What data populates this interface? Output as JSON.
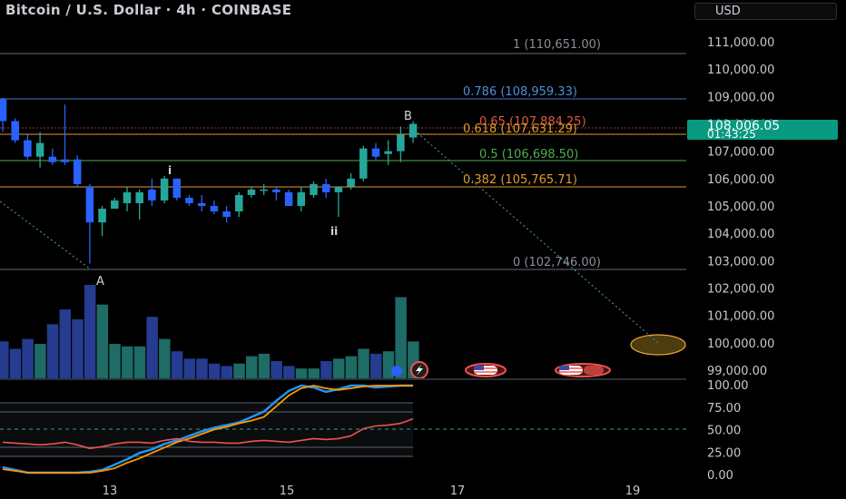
{
  "header": {
    "title": "Bitcoin / U.S. Dollar · 4h · COINBASE",
    "currency": "USD"
  },
  "price_axis": {
    "ticks": [
      "111,000.00",
      "110,000.00",
      "109,000.00",
      "108,000.00",
      "107,000.00",
      "106,000.00",
      "105,000.00",
      "104,000.00",
      "103,000.00",
      "102,000.00",
      "101,000.00",
      "100,000.00",
      "99,000.00"
    ],
    "current_price": "108,006.05",
    "countdown": "01:43:25"
  },
  "fib_levels": [
    {
      "label": "1 (110,651.00)",
      "color": "#8a8e98"
    },
    {
      "label": "0.786 (108,959.33)",
      "color": "#4f8fd6"
    },
    {
      "label": "0.65 (107,884.25)",
      "color": "#e0593e"
    },
    {
      "label": "0.618 (107,631.29)",
      "color": "#e39a2a"
    },
    {
      "label": "0.5 (106,698.50)",
      "color": "#4caf50"
    },
    {
      "label": "0.382 (105,765.71)",
      "color": "#e39a2a"
    },
    {
      "label": "0 (102,746.00)",
      "color": "#8a8e98"
    }
  ],
  "markers": {
    "a": "A",
    "b": "B",
    "i": "i",
    "ii": "ii"
  },
  "time_axis": [
    "13",
    "15",
    "17",
    "19"
  ],
  "oscillator_axis": [
    "100.00",
    "75.00",
    "50.00",
    "25.00",
    "0.00"
  ],
  "colors": {
    "up": "#26a69a",
    "down": "#2962ff",
    "rsi": "#ef5350",
    "stoch_k": "#2196f3",
    "stoch_d": "#ff9800"
  },
  "chart_data": {
    "type": "candlestick",
    "symbol": "BTCUSD",
    "interval": "4h",
    "candles": [
      {
        "o": 108900,
        "h": 108950,
        "l": 107700,
        "c": 108100
      },
      {
        "o": 108100,
        "h": 108200,
        "l": 107300,
        "c": 107400
      },
      {
        "o": 107400,
        "h": 107600,
        "l": 106700,
        "c": 106800
      },
      {
        "o": 106800,
        "h": 107700,
        "l": 106400,
        "c": 107300
      },
      {
        "o": 106800,
        "h": 107100,
        "l": 106500,
        "c": 106600
      },
      {
        "o": 106700,
        "h": 108700,
        "l": 106500,
        "c": 106600
      },
      {
        "o": 106700,
        "h": 106850,
        "l": 105700,
        "c": 105800
      },
      {
        "o": 105700,
        "h": 105800,
        "l": 102900,
        "c": 104400
      },
      {
        "o": 104400,
        "h": 105000,
        "l": 103900,
        "c": 104900
      },
      {
        "o": 104900,
        "h": 105300,
        "l": 104900,
        "c": 105200
      },
      {
        "o": 105100,
        "h": 105700,
        "l": 104800,
        "c": 105500
      },
      {
        "o": 105100,
        "h": 105600,
        "l": 104500,
        "c": 105500
      },
      {
        "o": 105600,
        "h": 106000,
        "l": 105000,
        "c": 105200
      },
      {
        "o": 105200,
        "h": 106100,
        "l": 105100,
        "c": 106000
      },
      {
        "o": 106000,
        "h": 106000,
        "l": 105200,
        "c": 105300
      },
      {
        "o": 105300,
        "h": 105400,
        "l": 105000,
        "c": 105100
      },
      {
        "o": 105100,
        "h": 105400,
        "l": 104800,
        "c": 105000
      },
      {
        "o": 105000,
        "h": 105200,
        "l": 104700,
        "c": 104800
      },
      {
        "o": 104800,
        "h": 105000,
        "l": 104400,
        "c": 104600
      },
      {
        "o": 104800,
        "h": 105500,
        "l": 104600,
        "c": 105400
      },
      {
        "o": 105400,
        "h": 105700,
        "l": 105300,
        "c": 105600
      },
      {
        "o": 105600,
        "h": 105800,
        "l": 105400,
        "c": 105600
      },
      {
        "o": 105600,
        "h": 105700,
        "l": 105200,
        "c": 105500
      },
      {
        "o": 105500,
        "h": 105600,
        "l": 105000,
        "c": 105000
      },
      {
        "o": 105000,
        "h": 105700,
        "l": 104800,
        "c": 105500
      },
      {
        "o": 105400,
        "h": 105900,
        "l": 105300,
        "c": 105800
      },
      {
        "o": 105800,
        "h": 106000,
        "l": 105300,
        "c": 105500
      },
      {
        "o": 105500,
        "h": 105700,
        "l": 104600,
        "c": 105700
      },
      {
        "o": 105700,
        "h": 106200,
        "l": 105600,
        "c": 106000
      },
      {
        "o": 106000,
        "h": 107200,
        "l": 105900,
        "c": 107100
      },
      {
        "o": 107100,
        "h": 107300,
        "l": 106700,
        "c": 106800
      },
      {
        "o": 106900,
        "h": 107400,
        "l": 106500,
        "c": 107000
      },
      {
        "o": 107000,
        "h": 107900,
        "l": 106600,
        "c": 107600
      },
      {
        "o": 107500,
        "h": 108100,
        "l": 107300,
        "c": 108000
      }
    ],
    "volume": [
      15,
      12,
      16,
      14,
      22,
      28,
      24,
      38,
      30,
      14,
      13,
      13,
      25,
      16,
      11,
      8,
      8,
      6,
      5,
      6,
      9,
      10,
      7,
      5,
      4,
      4,
      7,
      8,
      9,
      12,
      10,
      11,
      33,
      15
    ],
    "stoch_k": [
      8,
      5,
      2,
      2,
      2,
      2,
      2,
      3,
      5,
      11,
      17,
      24,
      28,
      34,
      38,
      43,
      48,
      52,
      55,
      58,
      64,
      70,
      82,
      93,
      99,
      97,
      92,
      95,
      99,
      99,
      97,
      98,
      99,
      99
    ],
    "stoch_d": [
      6,
      4,
      2,
      2,
      2,
      2,
      2,
      2,
      4,
      7,
      13,
      18,
      24,
      30,
      36,
      40,
      45,
      50,
      53,
      57,
      60,
      64,
      76,
      88,
      96,
      99,
      96,
      94,
      96,
      98,
      99,
      99,
      99,
      99
    ],
    "rsi": [
      36,
      35,
      34,
      33,
      34,
      36,
      33,
      29,
      31,
      34,
      36,
      36,
      35,
      38,
      40,
      37,
      36,
      36,
      35,
      35,
      37,
      38,
      37,
      36,
      38,
      40,
      39,
      40,
      43,
      51,
      54,
      55,
      57,
      62
    ]
  }
}
